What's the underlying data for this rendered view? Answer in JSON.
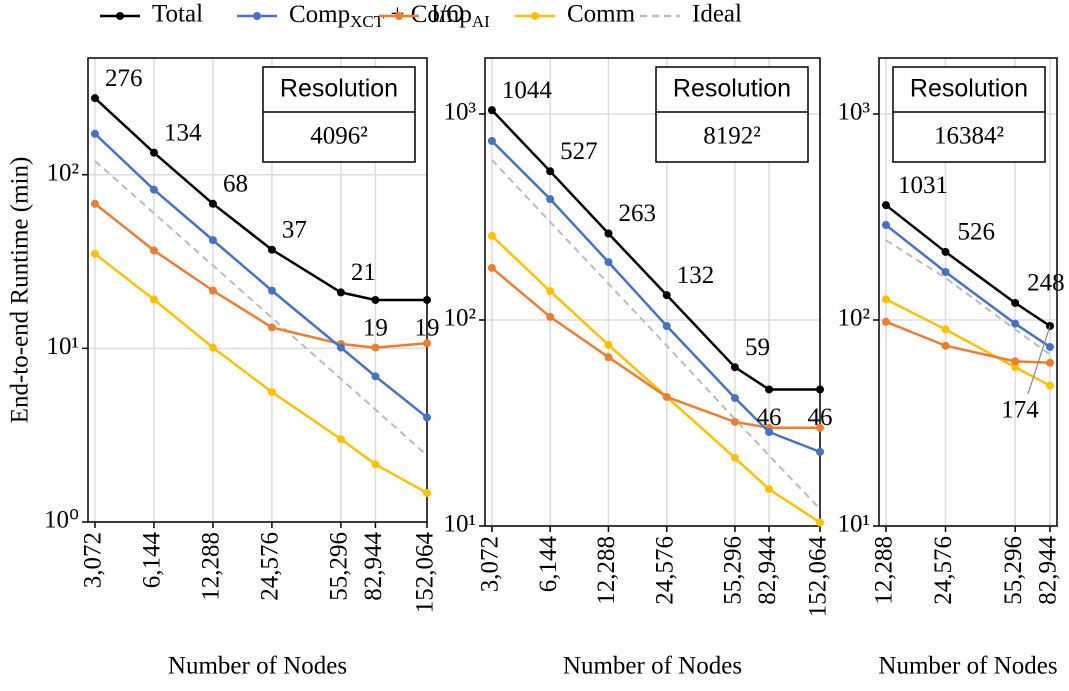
{
  "legend": [
    {
      "name": "Total",
      "color": "#000000"
    },
    {
      "name_parts": [
        "Comp",
        "XCT",
        " + Comp",
        "AI"
      ],
      "color": "#4472c4"
    },
    {
      "name": "I/O",
      "color": "#ed7d31"
    },
    {
      "name": "Comm",
      "color": "#ffc000"
    },
    {
      "name": "Ideal",
      "color": "#bbbbbb",
      "dashed": true
    }
  ],
  "chart_data": [
    {
      "type": "line",
      "log_x": true,
      "log_y": true,
      "grid": true,
      "x_label": "Number of Nodes",
      "y_label": "End-to-end Runtime (min)",
      "box_title": "Resolution",
      "box_value": "4096²",
      "x": [
        3072,
        6144,
        12288,
        24576,
        55296,
        82944,
        152064
      ],
      "xlim": [
        2830,
        152064
      ],
      "xticks": [
        {
          "value": 3072,
          "label": "3,072"
        },
        {
          "value": 6144,
          "label": "6,144"
        },
        {
          "value": 12288,
          "label": "12,288"
        },
        {
          "value": 24576,
          "label": "24,576"
        },
        {
          "value": 55296,
          "label": "55,296"
        },
        {
          "value": 82944,
          "label": "82,944"
        },
        {
          "value": 152064,
          "label": "152,064"
        }
      ],
      "ylim": [
        1,
        470
      ],
      "yticks": [
        {
          "value": 1,
          "label": "10⁰"
        },
        {
          "value": 10,
          "label": "10¹"
        },
        {
          "value": 100,
          "label": "10²"
        }
      ],
      "series": [
        {
          "values": [
            276,
            134,
            68,
            37,
            21,
            19,
            19
          ]
        },
        {
          "values": [
            172,
            82,
            42,
            21.5,
            10.1,
            6.9,
            4.0
          ]
        },
        {
          "values": [
            68,
            36.6,
            21.5,
            13.2,
            10.6,
            10.1,
            10.7
          ]
        },
        {
          "values": [
            35,
            19.1,
            10.1,
            5.6,
            3.0,
            2.15,
            1.47
          ]
        },
        {
          "values": [
            120,
            60,
            30,
            15,
            6.67,
            4.44,
            2.42
          ]
        }
      ]
    },
    {
      "type": "line",
      "log_x": true,
      "log_y": true,
      "grid": true,
      "x_label": "Number of Nodes",
      "box_title": "Resolution",
      "box_value": "8192²",
      "x": [
        3072,
        6144,
        12288,
        24576,
        55296,
        82944,
        152064
      ],
      "xlim": [
        2830,
        152064
      ],
      "xticks": [
        {
          "value": 3072,
          "label": "3,072"
        },
        {
          "value": 6144,
          "label": "6,144"
        },
        {
          "value": 12288,
          "label": "12,288"
        },
        {
          "value": 24576,
          "label": "24,576"
        },
        {
          "value": 55296,
          "label": "55,296"
        },
        {
          "value": 82944,
          "label": "82,944"
        },
        {
          "value": 152064,
          "label": "152,064"
        }
      ],
      "ylim": [
        10,
        1870
      ],
      "yticks": [
        {
          "value": 10,
          "label": "10¹"
        },
        {
          "value": 100,
          "label": "10²"
        },
        {
          "value": 1000,
          "label": "10³"
        }
      ],
      "series": [
        {
          "values": [
            1044,
            527,
            263,
            132,
            59,
            46,
            46
          ]
        },
        {
          "values": [
            740,
            386,
            191,
            93.5,
            41.8,
            28.6,
            22.9
          ]
        },
        {
          "values": [
            179,
            103.5,
            66,
            42.3,
            32,
            30,
            30
          ]
        },
        {
          "values": [
            256,
            138,
            75.7,
            42.3,
            21.4,
            15.1,
            10.4
          ]
        },
        {
          "values": [
            598,
            299,
            150,
            75,
            33,
            22,
            12.1
          ]
        }
      ]
    },
    {
      "type": "line",
      "log_x": true,
      "log_y": true,
      "grid": true,
      "x_label": "Number of Nodes",
      "box_title": "Resolution",
      "box_value": "16384²",
      "x": [
        12288,
        24576,
        55296,
        82944
      ],
      "xlim": [
        11330,
        90000
      ],
      "xticks": [
        {
          "value": 12288,
          "label": "12,288"
        },
        {
          "value": 24576,
          "label": "24,576"
        },
        {
          "value": 55296,
          "label": "55,296"
        },
        {
          "value": 82944,
          "label": "82,944"
        }
      ],
      "ylim": [
        10,
        1870
      ],
      "yticks": [
        {
          "value": 10,
          "label": "10¹"
        },
        {
          "value": 100,
          "label": "10²"
        },
        {
          "value": 1000,
          "label": "10³"
        }
      ],
      "annotations": [
        "1031",
        "526",
        "248",
        "174"
      ],
      "series": [
        {
          "values": [
            361,
            214,
            121,
            93.5
          ]
        },
        {
          "values": [
            289,
            171,
            96,
            74
          ]
        },
        {
          "values": [
            98,
            75,
            63,
            62
          ]
        },
        {
          "values": [
            126,
            90,
            59,
            48
          ]
        },
        {
          "values": [
            244,
            160,
            90,
            68
          ]
        }
      ]
    }
  ]
}
